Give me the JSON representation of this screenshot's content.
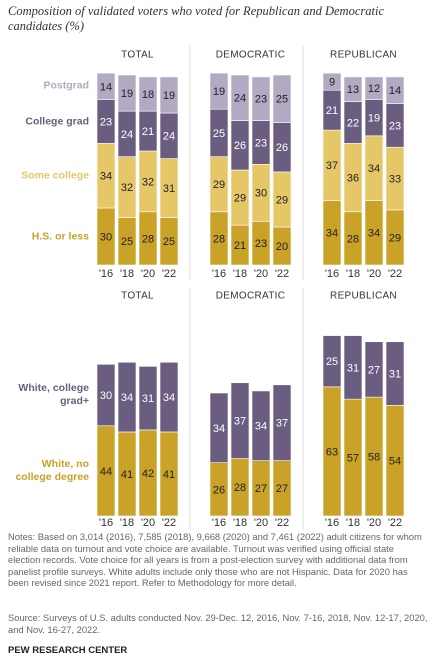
{
  "title": "Composition of validated voters who voted for Republican and Democratic candidates (%)",
  "chart_data": [
    {
      "type": "bar",
      "stacked": true,
      "title": "TOTAL",
      "categories": [
        "'16",
        "'18",
        "'20",
        "'22"
      ],
      "series": [
        {
          "name": "H.S. or less",
          "color": "#c9a227",
          "values": [
            30,
            25,
            28,
            25
          ]
        },
        {
          "name": "Some college",
          "color": "#e6c768",
          "values": [
            34,
            32,
            32,
            31
          ]
        },
        {
          "name": "College grad",
          "color": "#6b5d80",
          "values": [
            23,
            24,
            21,
            24
          ]
        },
        {
          "name": "Postgrad",
          "color": "#b2a9c2",
          "values": [
            14,
            19,
            18,
            19
          ]
        }
      ]
    },
    {
      "type": "bar",
      "stacked": true,
      "title": "DEMOCRATIC",
      "categories": [
        "'16",
        "'18",
        "'20",
        "'22"
      ],
      "series": [
        {
          "color": "#c9a227",
          "values": [
            28,
            21,
            23,
            20
          ]
        },
        {
          "color": "#e6c768",
          "values": [
            29,
            29,
            30,
            29
          ]
        },
        {
          "color": "#6b5d80",
          "values": [
            25,
            26,
            23,
            26
          ]
        },
        {
          "color": "#b2a9c2",
          "values": [
            19,
            24,
            23,
            25
          ]
        }
      ]
    },
    {
      "type": "bar",
      "stacked": true,
      "title": "REPUBLICAN",
      "categories": [
        "'16",
        "'18",
        "'20",
        "'22"
      ],
      "series": [
        {
          "color": "#c9a227",
          "values": [
            34,
            28,
            34,
            29
          ]
        },
        {
          "color": "#e6c768",
          "values": [
            37,
            36,
            34,
            33
          ]
        },
        {
          "color": "#6b5d80",
          "values": [
            21,
            22,
            19,
            23
          ]
        },
        {
          "color": "#b2a9c2",
          "values": [
            9,
            13,
            12,
            14
          ]
        }
      ]
    },
    {
      "type": "bar",
      "stacked": true,
      "title": "TOTAL",
      "categories": [
        "'16",
        "'18",
        "'20",
        "'22"
      ],
      "series": [
        {
          "name": "White, no college degree",
          "color": "#c9a227",
          "values": [
            44,
            41,
            42,
            41
          ]
        },
        {
          "name": "White, college grad+",
          "color": "#6b5d80",
          "values": [
            30,
            34,
            31,
            34
          ]
        }
      ]
    },
    {
      "type": "bar",
      "stacked": true,
      "title": "DEMOCRATIC",
      "categories": [
        "'16",
        "'18",
        "'20",
        "'22"
      ],
      "series": [
        {
          "color": "#c9a227",
          "values": [
            26,
            28,
            27,
            27
          ]
        },
        {
          "color": "#6b5d80",
          "values": [
            34,
            37,
            34,
            37
          ]
        }
      ]
    },
    {
      "type": "bar",
      "stacked": true,
      "title": "REPUBLICAN",
      "categories": [
        "'16",
        "'18",
        "'20",
        "'22"
      ],
      "series": [
        {
          "color": "#c9a227",
          "values": [
            63,
            57,
            58,
            54
          ]
        },
        {
          "color": "#6b5d80",
          "values": [
            25,
            31,
            27,
            31
          ]
        }
      ]
    }
  ],
  "notes": "Notes: Based on 3,014 (2016), 7,585 (2018), 9,668 (2020) and 7,461 (2022) adult citizens for whom reliable data on turnout and vote choice are available. Turnout was verified using official state election records. Vote choice for all years is from a post-election survey with additional data from panelist profile surveys. White adults include only those who are not Hispanic. Data for 2020 has been revised since 2021 report. Refer to Methodology for more detail.",
  "source": "Source: Surveys of U.S. adults conducted Nov. 29-Dec. 12, 2016, Nov. 7-16, 2018, Nov. 12-17, 2020, and Nov. 16-27, 2022.",
  "footer": "PEW RESEARCH CENTER"
}
